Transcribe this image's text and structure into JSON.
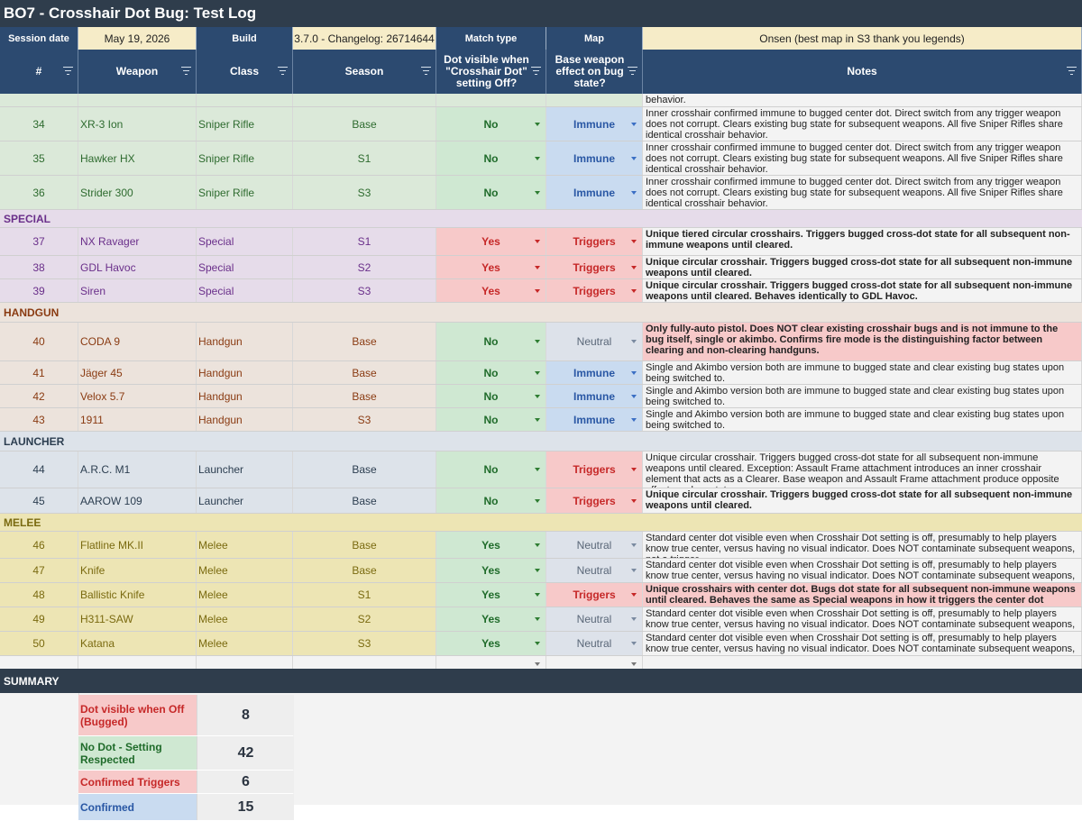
{
  "title": "BO7 - Crosshair Dot Bug: Test Log",
  "meta": {
    "session_date_label": "Session date",
    "session_date": "May 19, 2026",
    "build_label": "Build",
    "build": "3.7.0 - Changelog: 26714644",
    "match_type_label": "Match type",
    "map_label": "Map",
    "map": "Onsen (best map in S3 thank you legends)"
  },
  "columns": {
    "num": "#",
    "weapon": "Weapon",
    "class": "Class",
    "season": "Season",
    "dot": "Dot visible when \"Crosshair Dot\" setting Off?",
    "effect": "Base weapon effect on bug state?",
    "notes": "Notes"
  },
  "colors": {
    "sniper": "#dbe9d9",
    "special": "#e6dcea",
    "handgun": "#ece3dc",
    "launcher": "#dde3ea",
    "melee": "#ede5b4",
    "yes": "#f7c9c9",
    "no": "#cfe8d2",
    "immune": "#c9dbf0",
    "neutral": "#dde2ea"
  },
  "partial_row_text": "behavior.",
  "sections": [
    {
      "key": "sniper",
      "label": "",
      "text_color": "#2e6b2f",
      "bg": "#dbe9d9",
      "rows": [
        {
          "num": "34",
          "weapon": "XR-3 Ion",
          "class": "Sniper Rifle",
          "season": "Base",
          "dot": "No",
          "effect": "Immune",
          "notes": "Inner crosshair confirmed immune to bugged center dot. Direct switch from any trigger weapon does not corrupt. Clears existing bug state for subsequent weapons. All five Sniper Rifles share identical crosshair behavior.",
          "bold": false,
          "h": 38
        },
        {
          "num": "35",
          "weapon": "Hawker HX",
          "class": "Sniper Rifle",
          "season": "S1",
          "dot": "No",
          "effect": "Immune",
          "notes": "Inner crosshair confirmed immune to bugged center dot. Direct switch from any trigger weapon does not corrupt. Clears existing bug state for subsequent weapons. All five Sniper Rifles share identical crosshair behavior.",
          "bold": false,
          "h": 38
        },
        {
          "num": "36",
          "weapon": "Strider 300",
          "class": "Sniper Rifle",
          "season": "S3",
          "dot": "No",
          "effect": "Immune",
          "notes": "Inner crosshair confirmed immune to bugged center dot. Direct switch from any trigger weapon does not corrupt. Clears existing bug state for subsequent weapons. All five Sniper Rifles share identical crosshair behavior.",
          "bold": false,
          "h": 38
        }
      ]
    },
    {
      "key": "special",
      "label": "SPECIAL",
      "text_color": "#6a2f8a",
      "bg": "#e6dcea",
      "rows": [
        {
          "num": "37",
          "weapon": "NX Ravager",
          "class": "Special",
          "season": "S1",
          "dot": "Yes",
          "effect": "Triggers",
          "notes": "Unique tiered circular crosshairs. Triggers bugged cross-dot state for all subsequent non-immune weapons until cleared.",
          "bold": true,
          "h": 31
        },
        {
          "num": "38",
          "weapon": "GDL Havoc",
          "class": "Special",
          "season": "S2",
          "dot": "Yes",
          "effect": "Triggers",
          "notes": "Unique circular crosshair. Triggers bugged cross-dot state for all subsequent non-immune weapons until cleared.",
          "bold": true,
          "h": 26
        },
        {
          "num": "39",
          "weapon": "Siren",
          "class": "Special",
          "season": "S3",
          "dot": "Yes",
          "effect": "Triggers",
          "notes": "Unique circular crosshair. Triggers bugged cross-dot state for all subsequent non-immune weapons until cleared. Behaves identically to GDL Havoc.",
          "bold": true,
          "h": 26
        }
      ]
    },
    {
      "key": "handgun",
      "label": "HANDGUN",
      "text_color": "#8a3b12",
      "bg": "#ece3dc",
      "rows": [
        {
          "num": "40",
          "weapon": "CODA 9",
          "class": "Handgun",
          "season": "Base",
          "dot": "No",
          "effect": "Neutral",
          "notes": "Only fully-auto pistol. Does NOT clear existing crosshair bugs and is not immune to the bug itself, single or akimbo. Confirms fire mode is the distinguishing factor between clearing and non-clearing handguns.",
          "bold": true,
          "notes_bg": "#f7c9c9",
          "h": 43
        },
        {
          "num": "41",
          "weapon": "Jäger 45",
          "class": "Handgun",
          "season": "Base",
          "dot": "No",
          "effect": "Immune",
          "notes": "Single and Akimbo version both are immune to bugged state and clear existing bug states upon being switched to.",
          "bold": false,
          "h": 26
        },
        {
          "num": "42",
          "weapon": "Velox 5.7",
          "class": "Handgun",
          "season": "Base",
          "dot": "No",
          "effect": "Immune",
          "notes": "Single and Akimbo version both are immune to bugged state and clear existing bug states upon being switched to.",
          "bold": false,
          "h": 26
        },
        {
          "num": "43",
          "weapon": "1911",
          "class": "Handgun",
          "season": "S3",
          "dot": "No",
          "effect": "Immune",
          "notes": "Single and Akimbo version both are immune to bugged state and clear existing bug states upon being switched to.",
          "bold": false,
          "h": 26
        }
      ]
    },
    {
      "key": "launcher",
      "label": "LAUNCHER",
      "text_color": "#2c3e50",
      "bg": "#dde3ea",
      "rows": [
        {
          "num": "44",
          "weapon": "A.R.C. M1",
          "class": "Launcher",
          "season": "Base",
          "dot": "No",
          "effect": "Triggers",
          "notes": "Unique circular crosshair. Triggers bugged cross-dot state for all subsequent non-immune weapons until cleared. Exception: Assault Frame attachment introduces an inner crosshair element that acts as a Clearer. Base weapon and Assault Frame attachment produce opposite effects on bug state.",
          "bold": false,
          "h": 41
        },
        {
          "num": "45",
          "weapon": "AAROW 109",
          "class": "Launcher",
          "season": "Base",
          "dot": "No",
          "effect": "Triggers",
          "notes": "Unique circular crosshair. Triggers bugged cross-dot state for all subsequent non-immune weapons until cleared.",
          "bold": true,
          "h": 28
        }
      ]
    },
    {
      "key": "melee",
      "label": "MELEE",
      "text_color": "#7a6a10",
      "bg": "#ede5b4",
      "rows": [
        {
          "num": "46",
          "weapon": "Flatline MK.II",
          "class": "Melee",
          "season": "Base",
          "dot": "Yes",
          "effect": "Neutral",
          "notes": "Standard center dot visible even when Crosshair Dot setting is off, presumably to help players know true center, versus having no visual indicator. Does NOT contaminate subsequent weapons, not a trigger.",
          "bold": false,
          "h": 30
        },
        {
          "num": "47",
          "weapon": "Knife",
          "class": "Melee",
          "season": "Base",
          "dot": "Yes",
          "effect": "Neutral",
          "notes": "Standard center dot visible even when Crosshair Dot setting is off, presumably to help players know true center, versus having no visual indicator. Does NOT contaminate subsequent weapons, not a trigger.",
          "bold": false,
          "h": 27
        },
        {
          "num": "48",
          "weapon": "Ballistic Knife",
          "class": "Melee",
          "season": "S1",
          "dot": "Yes",
          "effect": "Triggers",
          "notes": "Unique crosshairs with center dot. Bugs dot state for all subsequent non-immune weapons until cleared. Behaves the same as Special weapons in how it triggers the center dot bugged state.",
          "bold": true,
          "notes_bg": "#f7c9c9",
          "h": 27
        },
        {
          "num": "49",
          "weapon": "H311-SAW",
          "class": "Melee",
          "season": "S2",
          "dot": "Yes",
          "effect": "Neutral",
          "notes": "Standard center dot visible even when Crosshair Dot setting is off, presumably to help players know true center, versus having no visual indicator. Does NOT contaminate subsequent weapons, not a trigger.",
          "bold": false,
          "h": 27
        },
        {
          "num": "50",
          "weapon": "Katana",
          "class": "Melee",
          "season": "S3",
          "dot": "Yes",
          "effect": "Neutral",
          "notes": "Standard center dot visible even when Crosshair Dot setting is off, presumably to help players know true center, versus having no visual indicator. Does NOT contaminate subsequent weapons, not a trigger.",
          "bold": false,
          "h": 27
        }
      ]
    }
  ],
  "summary": {
    "title": "SUMMARY",
    "items": [
      {
        "label": "Dot visible when Off (Bugged)",
        "value": "8",
        "bg": "#f7c9c9",
        "color": "#c62828"
      },
      {
        "label": "No Dot - Setting Respected",
        "value": "42",
        "bg": "#cfe8d2",
        "color": "#1f6b2a"
      },
      {
        "label": "Confirmed Triggers",
        "value": "6",
        "bg": "#f7c9c9",
        "color": "#c62828"
      },
      {
        "label": "Confirmed",
        "value": "15",
        "bg": "#c9dbf0",
        "color": "#2957a4"
      }
    ]
  }
}
